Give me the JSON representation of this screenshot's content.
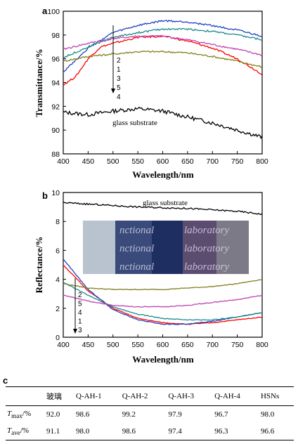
{
  "chart_data": [
    {
      "panel": "a",
      "type": "line",
      "xlabel": "Wavelength/nm",
      "ylabel": "Transmittance/%",
      "xlim": [
        400,
        800
      ],
      "ylim": [
        88,
        100
      ],
      "xticks": [
        "400",
        "450",
        "500",
        "550",
        "600",
        "650",
        "700",
        "750",
        "800"
      ],
      "yticks": [
        "88",
        "90",
        "92",
        "94",
        "96",
        "98",
        "100"
      ],
      "annotation_text": "glass substrate",
      "arrow_labels": [
        "2",
        "1",
        "3",
        "5",
        "4"
      ],
      "series": [
        {
          "color": "#000000",
          "x": [
            400,
            450,
            500,
            550,
            600,
            650,
            700,
            750,
            800
          ],
          "y": [
            91.5,
            91.3,
            91.6,
            91.8,
            91.6,
            91.1,
            90.6,
            90.0,
            89.4
          ]
        },
        {
          "color": "#ff0000",
          "x": [
            400,
            425,
            450,
            475,
            500,
            550,
            600,
            650,
            700,
            750,
            800
          ],
          "y": [
            93.8,
            94.5,
            96.0,
            97.0,
            97.3,
            97.8,
            97.9,
            97.5,
            96.9,
            96.0,
            94.7
          ]
        },
        {
          "color": "#2040c0",
          "x": [
            400,
            450,
            500,
            550,
            600,
            650,
            700,
            750,
            800
          ],
          "y": [
            94.9,
            96.9,
            98.2,
            98.8,
            99.2,
            99.1,
            98.8,
            98.4,
            97.9
          ]
        },
        {
          "color": "#1a8a8a",
          "x": [
            400,
            450,
            500,
            550,
            600,
            650,
            700,
            750,
            800
          ],
          "y": [
            96.1,
            97.0,
            97.8,
            98.2,
            98.5,
            98.5,
            98.3,
            98.0,
            97.6
          ]
        },
        {
          "color": "#c040b0",
          "x": [
            400,
            450,
            500,
            550,
            600,
            650,
            700,
            750,
            800
          ],
          "y": [
            96.8,
            97.3,
            97.7,
            97.9,
            97.9,
            97.6,
            97.2,
            96.8,
            96.3
          ]
        },
        {
          "color": "#808020",
          "x": [
            400,
            450,
            500,
            550,
            600,
            650,
            700,
            750,
            800
          ],
          "y": [
            95.8,
            96.2,
            96.4,
            96.6,
            96.6,
            96.5,
            96.2,
            95.8,
            95.3
          ]
        }
      ]
    },
    {
      "panel": "b",
      "type": "line",
      "xlabel": "Wavelength/nm",
      "ylabel": "Reflectance/%",
      "xlim": [
        400,
        800
      ],
      "ylim": [
        0,
        10
      ],
      "xticks": [
        "400",
        "450",
        "500",
        "550",
        "600",
        "650",
        "700",
        "750",
        "800"
      ],
      "yticks": [
        "0",
        "2",
        "4",
        "6",
        "8",
        "10"
      ],
      "annotation_text": "glass substrate",
      "arrow_labels": [
        "2",
        "5",
        "4",
        "1",
        "3"
      ],
      "inset_words": [
        "nctional",
        "laboratory",
        "nctional",
        "laboratory",
        "nctional",
        "laboratory"
      ],
      "series": [
        {
          "color": "#000000",
          "x": [
            400,
            450,
            500,
            550,
            600,
            650,
            700,
            750,
            800
          ],
          "y": [
            9.3,
            9.2,
            9.1,
            9.0,
            8.95,
            8.9,
            8.8,
            8.7,
            8.5
          ]
        },
        {
          "color": "#ff0000",
          "x": [
            400,
            450,
            500,
            550,
            600,
            650,
            700,
            750,
            800
          ],
          "y": [
            5.0,
            3.2,
            2.0,
            1.3,
            1.0,
            0.9,
            1.0,
            1.2,
            1.4
          ]
        },
        {
          "color": "#2040c0",
          "x": [
            400,
            450,
            500,
            550,
            600,
            650,
            700,
            750,
            800
          ],
          "y": [
            5.4,
            3.3,
            1.9,
            1.2,
            0.9,
            0.9,
            1.1,
            1.4,
            1.7
          ]
        },
        {
          "color": "#1a8a8a",
          "x": [
            400,
            450,
            500,
            550,
            600,
            650,
            700,
            750,
            800
          ],
          "y": [
            3.8,
            2.9,
            2.1,
            1.6,
            1.3,
            1.2,
            1.2,
            1.4,
            1.7
          ]
        },
        {
          "color": "#c040b0",
          "x": [
            400,
            450,
            500,
            550,
            600,
            650,
            700,
            750,
            800
          ],
          "y": [
            2.9,
            2.5,
            2.2,
            2.1,
            2.1,
            2.2,
            2.4,
            2.6,
            2.9
          ]
        },
        {
          "color": "#808020",
          "x": [
            400,
            450,
            500,
            550,
            600,
            650,
            700,
            750,
            800
          ],
          "y": [
            3.7,
            3.4,
            3.3,
            3.3,
            3.3,
            3.4,
            3.5,
            3.7,
            4.0
          ]
        }
      ]
    },
    {
      "panel": "c",
      "type": "table",
      "columns": [
        "",
        "玻璃",
        "Q-AH-1",
        "Q-AH-2",
        "Q-AH-3",
        "Q-AH-4",
        "HSNs"
      ],
      "rows": [
        {
          "label_main": "T",
          "label_sub": "max",
          "label_unit": "/%",
          "values": [
            "92.0",
            "98.6",
            "99.2",
            "97.9",
            "96.7",
            "98.0"
          ]
        },
        {
          "label_main": "T",
          "label_sub": "ave",
          "label_unit": "/%",
          "values": [
            "91.1",
            "98.0",
            "98.6",
            "97.4",
            "96.3",
            "96.6"
          ]
        }
      ]
    }
  ]
}
